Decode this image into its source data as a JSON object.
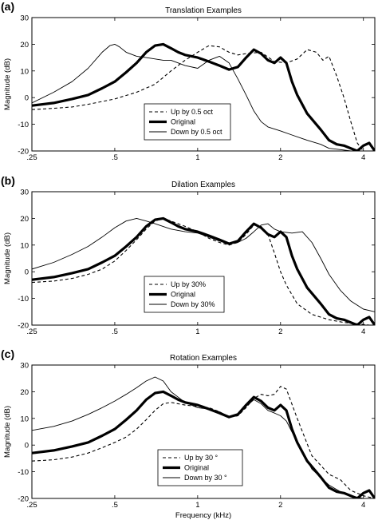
{
  "chart_data": [
    {
      "type": "line",
      "panel_label": "(a)",
      "title": "Translation Examples",
      "ylabel": "Magnitude (dB)",
      "xlabel": "",
      "xscale": "log",
      "xlim": [
        0.25,
        4.4
      ],
      "ylim": [
        -20,
        30
      ],
      "xticks": [
        ".25",
        ".5",
        "1",
        "2",
        "4"
      ],
      "yticks": [
        "-20",
        "-10",
        "0",
        "10",
        "20",
        "30"
      ],
      "legend": {
        "placement": "bottom-center"
      },
      "series": [
        {
          "name": "Up by 0.5 oct",
          "style": "dashed",
          "x": [
            0.25,
            0.3,
            0.35,
            0.4,
            0.5,
            0.6,
            0.7,
            0.8,
            0.9,
            1.0,
            1.1,
            1.2,
            1.3,
            1.4,
            1.5,
            1.7,
            1.9,
            2.1,
            2.3,
            2.5,
            2.7,
            2.85,
            3.0,
            3.2,
            3.4,
            3.6,
            3.8,
            4.0,
            4.2,
            4.4
          ],
          "y": [
            -4.5,
            -4,
            -3.5,
            -2.5,
            -0.5,
            2,
            5,
            10,
            14,
            17,
            19.5,
            19,
            17,
            16,
            16.5,
            17,
            13.5,
            13,
            14.5,
            18,
            17,
            14,
            15.5,
            8,
            0,
            -9,
            -17,
            -20,
            -20,
            -20
          ]
        },
        {
          "name": "Original",
          "style": "bold",
          "x": [
            0.25,
            0.3,
            0.35,
            0.4,
            0.45,
            0.5,
            0.55,
            0.6,
            0.65,
            0.7,
            0.75,
            0.8,
            0.85,
            0.9,
            0.95,
            1.0,
            1.1,
            1.2,
            1.3,
            1.4,
            1.5,
            1.6,
            1.7,
            1.8,
            1.9,
            2.0,
            2.1,
            2.2,
            2.3,
            2.5,
            2.8,
            3.0,
            3.2,
            3.4,
            3.6,
            3.8,
            4.0,
            4.2,
            4.4
          ],
          "y": [
            -3,
            -2,
            -0.5,
            1,
            3.5,
            6,
            9.5,
            13,
            17,
            19.5,
            20,
            18.5,
            17,
            16,
            15.5,
            15,
            13.5,
            12,
            10.5,
            11.5,
            15,
            18,
            16.5,
            14,
            13,
            15,
            13,
            6,
            1,
            -6,
            -12,
            -16,
            -17.5,
            -18,
            -19,
            -20,
            -18,
            -17,
            -20
          ]
        },
        {
          "name": "Down by 0.5 oct",
          "style": "thin",
          "x": [
            0.25,
            0.3,
            0.35,
            0.4,
            0.45,
            0.48,
            0.5,
            0.52,
            0.55,
            0.6,
            0.65,
            0.7,
            0.75,
            0.8,
            0.9,
            1.0,
            1.1,
            1.2,
            1.3,
            1.4,
            1.5,
            1.6,
            1.7,
            1.8,
            2.0,
            2.2,
            2.5,
            2.8,
            3.0,
            3.3,
            3.6
          ],
          "y": [
            -2,
            2,
            6,
            11,
            17,
            19.5,
            20,
            19,
            17,
            15.5,
            15,
            14.5,
            14,
            14,
            12,
            11,
            14,
            15.5,
            13,
            7,
            1,
            -5,
            -9,
            -11,
            -12.5,
            -14,
            -16,
            -17.5,
            -19,
            -19.5,
            -20
          ]
        }
      ]
    },
    {
      "type": "line",
      "panel_label": "(b)",
      "title": "Dilation Examples",
      "ylabel": "Magnitude (dB)",
      "xlabel": "",
      "xscale": "log",
      "xlim": [
        0.25,
        4.4
      ],
      "ylim": [
        -20,
        30
      ],
      "xticks": [
        ".25",
        ".5",
        "1",
        "2",
        "4"
      ],
      "yticks": [
        "-20",
        "-10",
        "0",
        "10",
        "20",
        "30"
      ],
      "legend": {
        "placement": "bottom-center"
      },
      "series": [
        {
          "name": "Up by 30%",
          "style": "dashed",
          "x": [
            0.25,
            0.3,
            0.35,
            0.4,
            0.45,
            0.5,
            0.55,
            0.6,
            0.65,
            0.7,
            0.75,
            0.8,
            0.9,
            1.0,
            1.1,
            1.2,
            1.3,
            1.4,
            1.5,
            1.6,
            1.7,
            1.8,
            1.9,
            2.0,
            2.1,
            2.3,
            2.6,
            3.0,
            3.4,
            3.8,
            4.2,
            4.4
          ],
          "y": [
            -4,
            -3.5,
            -2.5,
            -1,
            1,
            4,
            8,
            12,
            16,
            19,
            20,
            19,
            17,
            15,
            12.5,
            11,
            10,
            11,
            14,
            17.5,
            17,
            14,
            7,
            0,
            -5,
            -12,
            -16,
            -18,
            -19,
            -19.5,
            -20,
            -20
          ]
        },
        {
          "name": "Original",
          "style": "bold",
          "x": [
            0.25,
            0.3,
            0.35,
            0.4,
            0.45,
            0.5,
            0.55,
            0.6,
            0.65,
            0.7,
            0.75,
            0.8,
            0.85,
            0.9,
            0.95,
            1.0,
            1.1,
            1.2,
            1.3,
            1.4,
            1.5,
            1.6,
            1.7,
            1.8,
            1.9,
            2.0,
            2.1,
            2.2,
            2.3,
            2.5,
            2.8,
            3.0,
            3.2,
            3.4,
            3.6,
            3.8,
            4.0,
            4.2,
            4.4
          ],
          "y": [
            -3,
            -2,
            -0.5,
            1,
            3.5,
            6,
            9.5,
            13,
            17,
            19.5,
            20,
            18.5,
            17,
            16,
            15.5,
            15,
            13.5,
            12,
            10.5,
            11.5,
            15,
            18,
            16.5,
            14,
            13,
            15,
            13,
            6,
            1,
            -6,
            -12,
            -16,
            -17.5,
            -18,
            -19,
            -20,
            -18,
            -17,
            -20
          ]
        },
        {
          "name": "Down by 30%",
          "style": "thin",
          "x": [
            0.25,
            0.3,
            0.35,
            0.4,
            0.45,
            0.5,
            0.55,
            0.6,
            0.65,
            0.7,
            0.8,
            0.9,
            1.0,
            1.1,
            1.2,
            1.3,
            1.4,
            1.5,
            1.6,
            1.7,
            1.8,
            1.9,
            2.0,
            2.2,
            2.4,
            2.6,
            2.8,
            3.0,
            3.3,
            3.6,
            4.0,
            4.4
          ],
          "y": [
            1,
            3.5,
            6.5,
            9.5,
            13,
            16.5,
            19,
            20,
            19,
            18,
            16,
            15,
            14.5,
            13,
            11.5,
            10.5,
            11,
            12.5,
            15,
            17.5,
            18,
            16,
            15,
            14.5,
            15,
            11,
            5,
            -1,
            -7,
            -11,
            -14,
            -15
          ]
        }
      ]
    },
    {
      "type": "line",
      "panel_label": "(c)",
      "title": "Rotation Examples",
      "ylabel": "Magnitude (dB)",
      "xlabel": "Frequency (kHz)",
      "xscale": "log",
      "xlim": [
        0.25,
        4.4
      ],
      "ylim": [
        -20,
        30
      ],
      "xticks": [
        ".25",
        ".5",
        "1",
        "2",
        "4"
      ],
      "yticks": [
        "-20",
        "-10",
        "0",
        "10",
        "20",
        "30"
      ],
      "legend": {
        "placement": "bottom-right"
      },
      "series": [
        {
          "name": "Up by 30 °",
          "style": "dashed",
          "x": [
            0.25,
            0.3,
            0.35,
            0.4,
            0.45,
            0.5,
            0.55,
            0.6,
            0.65,
            0.7,
            0.75,
            0.8,
            0.9,
            1.0,
            1.1,
            1.2,
            1.3,
            1.4,
            1.5,
            1.6,
            1.7,
            1.8,
            1.9,
            2.0,
            2.1,
            2.3,
            2.6,
            3.0,
            3.3,
            3.6,
            4.0,
            4.4
          ],
          "y": [
            -6,
            -5.5,
            -4.5,
            -3,
            -1,
            1,
            3,
            6,
            9.5,
            13,
            15.5,
            16,
            15,
            14.5,
            14,
            12.5,
            10.5,
            11,
            14,
            17.5,
            19,
            18.5,
            19,
            22,
            21,
            10,
            -4,
            -11,
            -13,
            -17,
            -19,
            -20
          ]
        },
        {
          "name": "Original",
          "style": "bold",
          "x": [
            0.25,
            0.3,
            0.35,
            0.4,
            0.45,
            0.5,
            0.55,
            0.6,
            0.65,
            0.7,
            0.75,
            0.8,
            0.85,
            0.9,
            0.95,
            1.0,
            1.1,
            1.2,
            1.3,
            1.4,
            1.5,
            1.6,
            1.7,
            1.8,
            1.9,
            2.0,
            2.1,
            2.2,
            2.3,
            2.5,
            2.8,
            3.0,
            3.2,
            3.4,
            3.6,
            3.8,
            4.0,
            4.2,
            4.4
          ],
          "y": [
            -3,
            -2,
            -0.5,
            1,
            3.5,
            6,
            9.5,
            13,
            17,
            19.5,
            20,
            18.5,
            17,
            16,
            15.5,
            15,
            13.5,
            12,
            10.5,
            11.5,
            15,
            18,
            16.5,
            14,
            13,
            15,
            13,
            6,
            1,
            -6,
            -12,
            -16,
            -17.5,
            -18,
            -19,
            -20,
            -18,
            -17,
            -20
          ]
        },
        {
          "name": "Down by 30 °",
          "style": "thin",
          "x": [
            0.25,
            0.3,
            0.35,
            0.4,
            0.45,
            0.5,
            0.55,
            0.6,
            0.65,
            0.7,
            0.75,
            0.8,
            0.9,
            1.0,
            1.1,
            1.2,
            1.3,
            1.4,
            1.5,
            1.6,
            1.7,
            1.8,
            1.9,
            2.0,
            2.1,
            2.3,
            2.6,
            3.0,
            3.3,
            3.6,
            4.0,
            4.4
          ],
          "y": [
            5.5,
            7,
            9,
            11.5,
            14,
            16.5,
            19,
            21.5,
            24,
            25.5,
            24,
            20,
            16,
            14,
            13.5,
            12.5,
            10.5,
            11,
            14.5,
            17,
            15.5,
            13,
            12,
            11,
            9,
            1,
            -9,
            -15,
            -17.5,
            -19,
            -20,
            -20
          ]
        }
      ]
    }
  ]
}
